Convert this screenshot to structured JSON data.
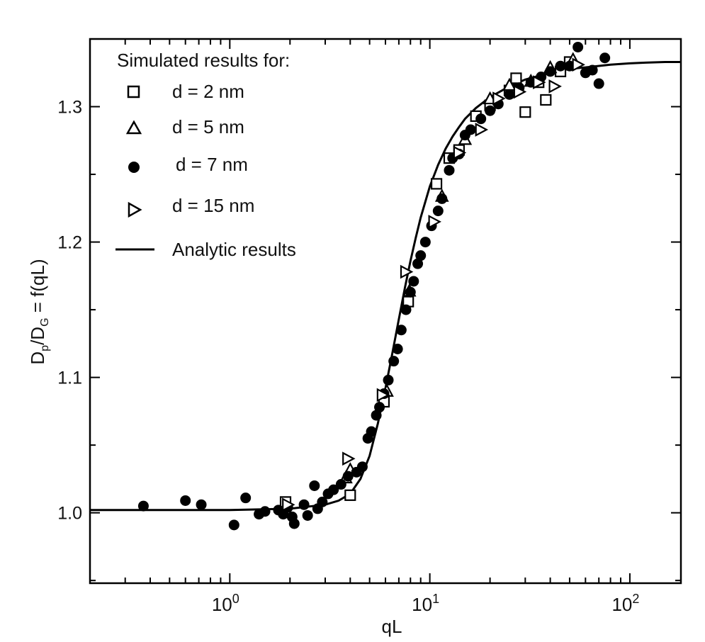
{
  "chart_data": {
    "type": "scatter",
    "xlabel": "qL",
    "ylabel": {
      "main": "D",
      "sub1": "p",
      "mid": "/D",
      "sub2": "G",
      "tail": " = f(qL)"
    },
    "x_scale": "log",
    "xlim": [
      0.2,
      180
    ],
    "ylim": [
      0.948,
      1.35
    ],
    "x_ticks": [
      {
        "value": 1,
        "base": "10",
        "exp": "0"
      },
      {
        "value": 10,
        "base": "10",
        "exp": "1"
      },
      {
        "value": 100,
        "base": "10",
        "exp": "2"
      }
    ],
    "y_ticks": [
      {
        "value": 1.0,
        "label": "1.0"
      },
      {
        "value": 1.1,
        "label": "1.1"
      },
      {
        "value": 1.2,
        "label": "1.2"
      },
      {
        "value": 1.3,
        "label": "1.3"
      }
    ],
    "grid": false,
    "legend_position": "top-left",
    "legend": {
      "title": "Simulated results for:",
      "entries": [
        {
          "marker": "square",
          "label": "d = 2 nm"
        },
        {
          "marker": "triangle",
          "label": "d = 5 nm"
        },
        {
          "marker": "circle",
          "label": "d = 7 nm"
        },
        {
          "marker": "triangle-right",
          "label": "d = 15 nm"
        },
        {
          "marker": "line",
          "label": "Analytic results"
        }
      ]
    },
    "analytic_curve": {
      "name": "Analytic results",
      "x": [
        0.2,
        0.5,
        1,
        2,
        3,
        3.5,
        4,
        4.5,
        5,
        5.5,
        6,
        6.5,
        7,
        7.5,
        8,
        8.5,
        9,
        10,
        11,
        12,
        13,
        14,
        15,
        17,
        20,
        25,
        30,
        40,
        50,
        60,
        80,
        100,
        120,
        150,
        180
      ],
      "y": [
        1.002,
        1.002,
        1.002,
        1.003,
        1.006,
        1.009,
        1.014,
        1.025,
        1.042,
        1.066,
        1.092,
        1.118,
        1.143,
        1.166,
        1.186,
        1.203,
        1.218,
        1.241,
        1.257,
        1.269,
        1.278,
        1.285,
        1.291,
        1.299,
        1.307,
        1.315,
        1.32,
        1.325,
        1.328,
        1.329,
        1.331,
        1.332,
        1.3325,
        1.333,
        1.333
      ]
    },
    "series": [
      {
        "name": "d = 2 nm",
        "marker": "square",
        "x": [
          1.9,
          4.0,
          5.9,
          7.8,
          10.8,
          12.5,
          14,
          17,
          20,
          25,
          27,
          30,
          35,
          38,
          45,
          50
        ],
        "y": [
          1.008,
          1.013,
          1.082,
          1.156,
          1.243,
          1.262,
          1.268,
          1.293,
          1.301,
          1.312,
          1.321,
          1.296,
          1.318,
          1.305,
          1.326,
          1.333
        ]
      },
      {
        "name": "d = 5 nm",
        "marker": "triangle",
        "x": [
          3.8,
          4.0,
          6.1,
          7.9,
          11.5,
          15,
          20,
          25,
          32,
          40,
          52
        ],
        "y": [
          1.026,
          1.032,
          1.09,
          1.164,
          1.234,
          1.276,
          1.306,
          1.316,
          1.319,
          1.329,
          1.335
        ]
      },
      {
        "name": "d = 7 nm",
        "marker": "circle",
        "x": [
          0.37,
          0.6,
          0.72,
          1.05,
          1.2,
          1.4,
          1.5,
          1.75,
          1.85,
          1.95,
          2.05,
          2.1,
          2.35,
          2.45,
          2.65,
          2.75,
          2.9,
          3.1,
          3.3,
          3.6,
          3.9,
          4.3,
          4.6,
          4.9,
          5.1,
          5.4,
          5.6,
          5.9,
          6.2,
          6.6,
          6.9,
          7.2,
          7.6,
          8.0,
          8.3,
          8.7,
          9.0,
          9.5,
          10.2,
          11,
          11.5,
          12.5,
          13,
          14,
          15,
          16,
          18,
          20,
          22,
          25,
          28,
          32,
          36,
          40,
          45,
          50,
          55,
          60,
          65,
          70,
          75
        ],
        "y": [
          1.005,
          1.009,
          1.006,
          0.991,
          1.011,
          0.999,
          1.001,
          1.002,
          0.999,
          1.004,
          0.997,
          0.992,
          1.006,
          0.998,
          1.02,
          1.003,
          1.008,
          1.014,
          1.017,
          1.021,
          1.027,
          1.03,
          1.034,
          1.055,
          1.06,
          1.072,
          1.078,
          1.088,
          1.098,
          1.112,
          1.121,
          1.135,
          1.15,
          1.163,
          1.171,
          1.184,
          1.19,
          1.2,
          1.212,
          1.223,
          1.232,
          1.253,
          1.262,
          1.265,
          1.279,
          1.283,
          1.291,
          1.297,
          1.302,
          1.309,
          1.314,
          1.318,
          1.322,
          1.326,
          1.33,
          1.33,
          1.344,
          1.325,
          1.327,
          1.317,
          1.336
        ]
      },
      {
        "name": "d = 15 nm",
        "marker": "triangle-right",
        "x": [
          1.95,
          3.9,
          5.8,
          7.6,
          10.5,
          14,
          18,
          22,
          28,
          35,
          42,
          55
        ],
        "y": [
          1.006,
          1.04,
          1.087,
          1.178,
          1.215,
          1.266,
          1.283,
          1.306,
          1.311,
          1.318,
          1.315,
          1.331
        ]
      }
    ]
  }
}
